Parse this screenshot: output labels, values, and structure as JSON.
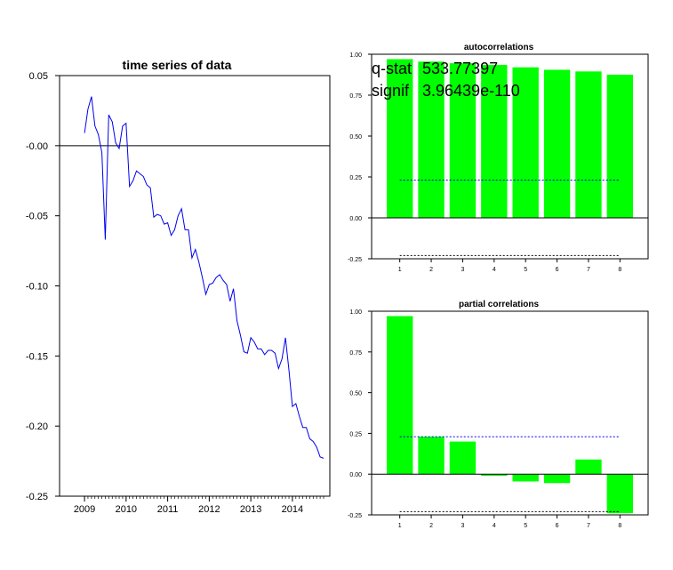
{
  "chart_data": [
    {
      "type": "line",
      "title": "time series of data",
      "xlabel": "",
      "ylabel": "",
      "xlim": [
        2008.4,
        2014.9
      ],
      "ylim": [
        -0.25,
        0.05
      ],
      "x_ticks": [
        "2009",
        "2010",
        "2011",
        "2012",
        "2013",
        "2014"
      ],
      "y_ticks": [
        "0.05",
        "-0.00",
        "-0.05",
        "-0.10",
        "-0.15",
        "-0.20",
        "-0.25"
      ],
      "reference_line": 0,
      "line_color": "#0000ee",
      "x": [
        2009.0,
        2009.083,
        2009.167,
        2009.25,
        2009.333,
        2009.417,
        2009.5,
        2009.583,
        2009.667,
        2009.75,
        2009.833,
        2009.917,
        2010.0,
        2010.083,
        2010.167,
        2010.25,
        2010.333,
        2010.417,
        2010.5,
        2010.583,
        2010.667,
        2010.75,
        2010.833,
        2010.917,
        2011.0,
        2011.083,
        2011.167,
        2011.25,
        2011.333,
        2011.417,
        2011.5,
        2011.583,
        2011.667,
        2011.75,
        2011.833,
        2011.917,
        2012.0,
        2012.083,
        2012.167,
        2012.25,
        2012.333,
        2012.417,
        2012.5,
        2012.583,
        2012.667,
        2012.75,
        2012.833,
        2012.917,
        2013.0,
        2013.083,
        2013.167,
        2013.25,
        2013.333,
        2013.417,
        2013.5,
        2013.583,
        2013.667,
        2013.75,
        2013.833,
        2013.917,
        2014.0,
        2014.083,
        2014.167,
        2014.25,
        2014.333,
        2014.417,
        2014.5,
        2014.583,
        2014.667,
        2014.75
      ],
      "y": [
        0.009,
        0.026,
        0.035,
        0.014,
        0.008,
        -0.005,
        -0.067,
        0.022,
        0.017,
        0.002,
        -0.002,
        0.014,
        0.016,
        -0.029,
        -0.025,
        -0.018,
        -0.02,
        -0.022,
        -0.028,
        -0.03,
        -0.051,
        -0.049,
        -0.05,
        -0.056,
        -0.055,
        -0.064,
        -0.06,
        -0.05,
        -0.045,
        -0.06,
        -0.06,
        -0.08,
        -0.074,
        -0.083,
        -0.094,
        -0.106,
        -0.099,
        -0.098,
        -0.094,
        -0.092,
        -0.096,
        -0.099,
        -0.111,
        -0.102,
        -0.125,
        -0.135,
        -0.147,
        -0.148,
        -0.137,
        -0.14,
        -0.145,
        -0.145,
        -0.149,
        -0.146,
        -0.146,
        -0.148,
        -0.159,
        -0.152,
        -0.137,
        -0.16,
        -0.186,
        -0.184,
        -0.193,
        -0.201,
        -0.201,
        -0.209,
        -0.211,
        -0.215,
        -0.222,
        -0.223
      ]
    },
    {
      "type": "bar",
      "title": "autocorrelations",
      "categories": [
        "1",
        "2",
        "3",
        "4",
        "5",
        "6",
        "7",
        "8"
      ],
      "values": [
        0.97,
        0.955,
        0.945,
        0.935,
        0.92,
        0.905,
        0.895,
        0.875
      ],
      "ylim": [
        -0.25,
        1.0
      ],
      "y_ticks": [
        "1.00",
        "0.75",
        "0.50",
        "0.25",
        "0.00",
        "-0.25"
      ],
      "confidence_band": [
        0.23,
        -0.23
      ],
      "bar_color": "#00ff00",
      "band_upper_color": "#0000ee",
      "band_lower_color": "#000000",
      "annotations": [
        {
          "label": "q-stat",
          "value": "533.77397"
        },
        {
          "label": "signif",
          "value": "3.96439e-110"
        }
      ]
    },
    {
      "type": "bar",
      "title": "partial correlations",
      "categories": [
        "1",
        "2",
        "3",
        "4",
        "5",
        "6",
        "7",
        "8"
      ],
      "values": [
        0.97,
        0.23,
        0.2,
        -0.01,
        -0.045,
        -0.055,
        0.09,
        -0.24
      ],
      "ylim": [
        -0.25,
        1.0
      ],
      "y_ticks": [
        "1.00",
        "0.75",
        "0.50",
        "0.25",
        "0.00",
        "-0.25"
      ],
      "confidence_band": [
        0.23,
        -0.23
      ],
      "bar_color": "#00ff00",
      "band_upper_color": "#0000ee",
      "band_lower_color": "#000000"
    }
  ]
}
